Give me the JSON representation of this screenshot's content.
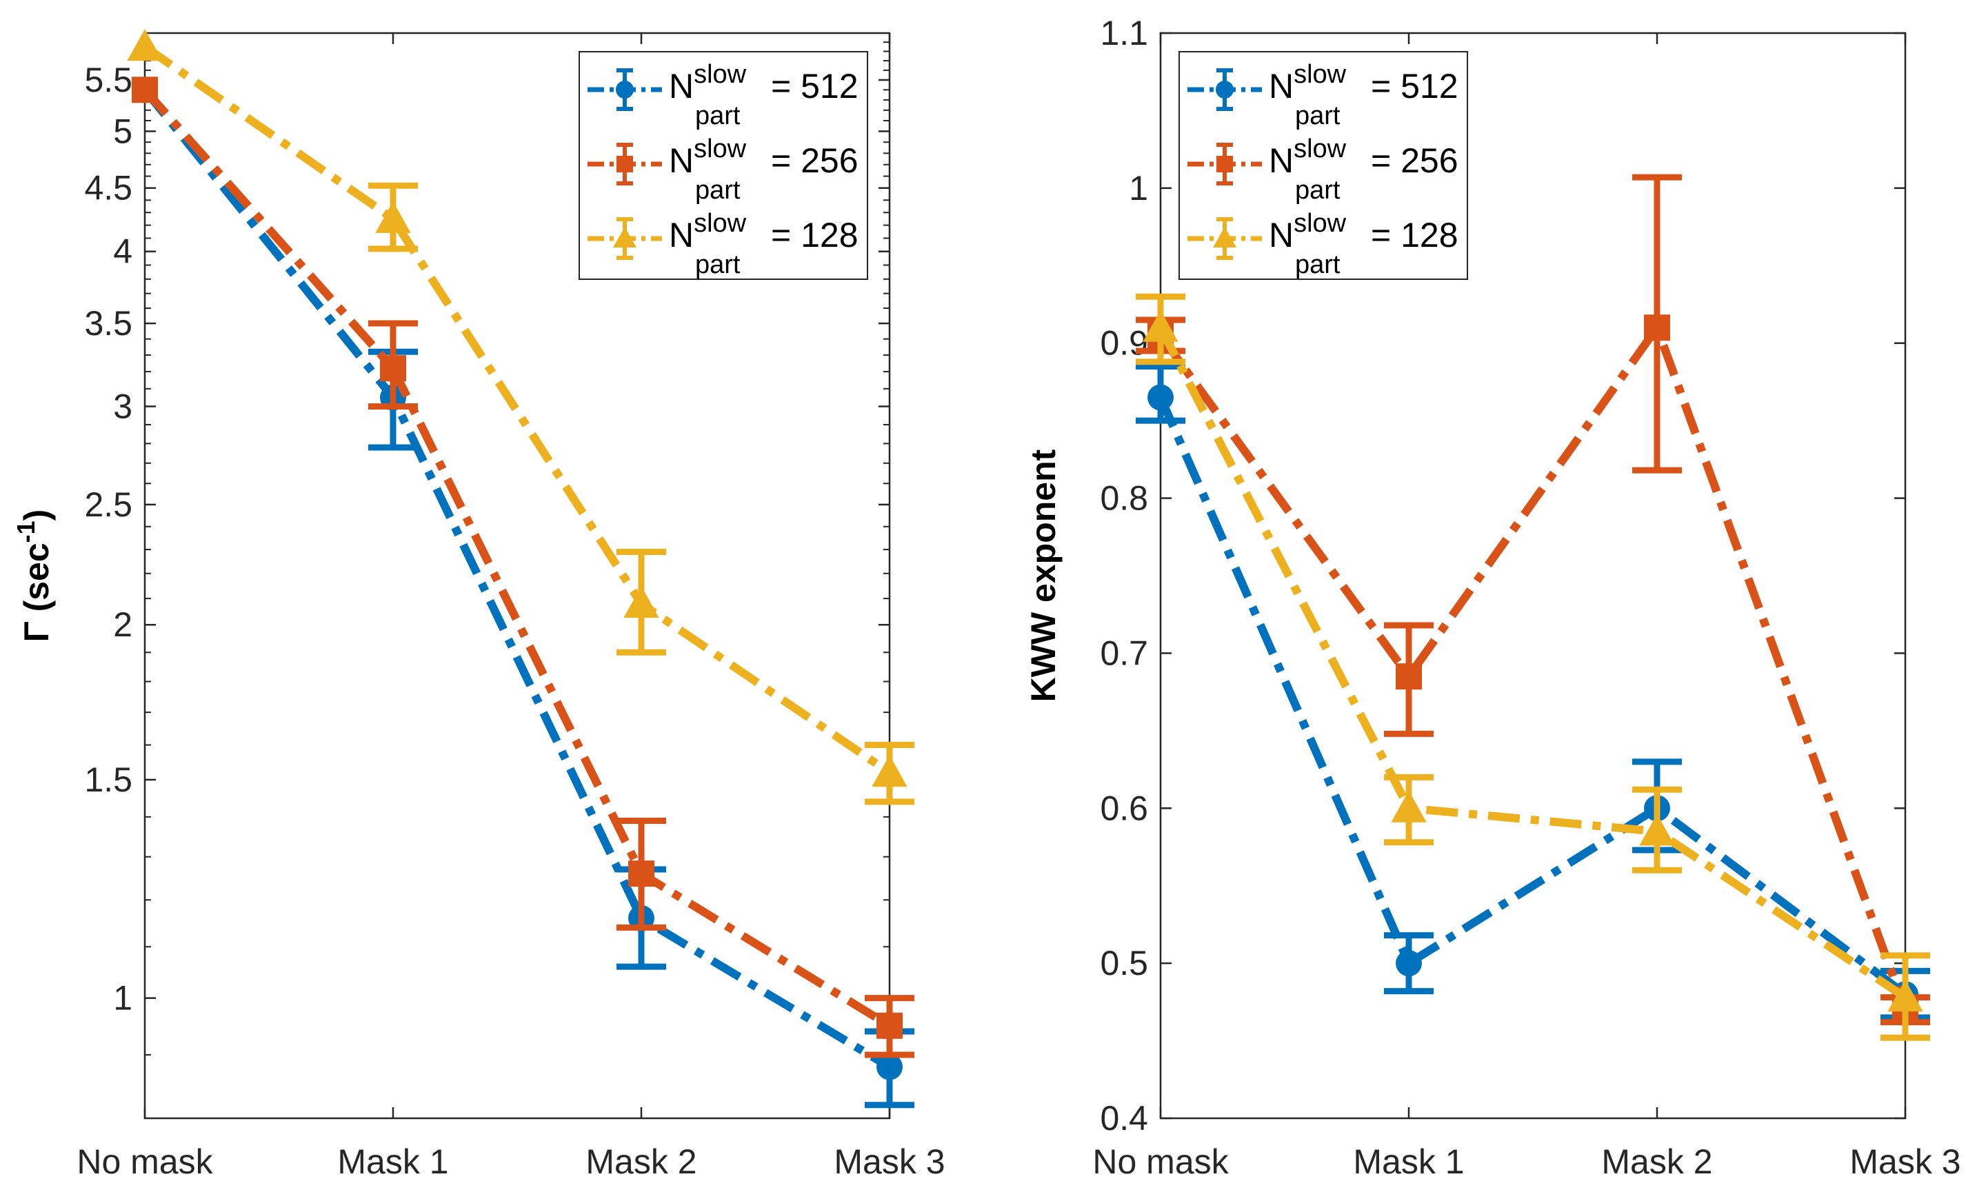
{
  "colors": {
    "blue": "#0072BD",
    "orange": "#D95319",
    "yellow": "#EDB120"
  },
  "chart_data": [
    {
      "type": "line",
      "scale": "log",
      "ylabel": "Γ (sec⁻¹)",
      "ylabel_parts": {
        "main": "Γ (sec",
        "sup": "-1",
        "close": ")"
      },
      "categories": [
        "No mask",
        "Mask 1",
        "Mask 2",
        "Mask 3"
      ],
      "ylim": [
        0.8,
        6.0
      ],
      "yticks": [
        1,
        1.5,
        2,
        2.5,
        3,
        3.5,
        4,
        4.5,
        5,
        5.5
      ],
      "ytick_labels": [
        "1",
        "1.5",
        "2",
        "2.5",
        "3",
        "3.5",
        "4",
        "4.5",
        "5",
        "5.5"
      ],
      "legend": {
        "position": "top-right"
      },
      "series": [
        {
          "name": "N_part^slow = 512",
          "label_base": "N",
          "label_sup": "slow",
          "label_sub": "part",
          "label_value": "= 512",
          "color": "#0072BD",
          "marker": "circle",
          "values": [
            5.4,
            3.05,
            1.16,
            0.88
          ],
          "err_low": [
            5.4,
            2.78,
            1.06,
            0.82
          ],
          "err_high": [
            5.4,
            3.32,
            1.27,
            0.94
          ]
        },
        {
          "name": "N_part^slow = 256",
          "label_base": "N",
          "label_sup": "slow",
          "label_sub": "part",
          "label_value": "= 256",
          "color": "#D95319",
          "marker": "square",
          "values": [
            5.4,
            3.22,
            1.26,
            0.95
          ],
          "err_low": [
            5.4,
            3.0,
            1.14,
            0.9
          ],
          "err_high": [
            5.4,
            3.5,
            1.39,
            1.0
          ]
        },
        {
          "name": "N_part^slow = 128",
          "label_base": "N",
          "label_sup": "slow",
          "label_sub": "part",
          "label_value": "= 128",
          "color": "#EDB120",
          "marker": "triangle",
          "values": [
            5.85,
            4.25,
            2.08,
            1.52
          ],
          "err_low": [
            5.85,
            4.02,
            1.9,
            1.44
          ],
          "err_high": [
            5.85,
            4.52,
            2.29,
            1.6
          ]
        }
      ]
    },
    {
      "type": "line",
      "scale": "linear",
      "ylabel": "KWW exponent",
      "categories": [
        "No mask",
        "Mask 1",
        "Mask 2",
        "Mask 3"
      ],
      "ylim": [
        0.4,
        1.1
      ],
      "yticks": [
        0.4,
        0.5,
        0.6,
        0.7,
        0.8,
        0.9,
        1.0,
        1.1
      ],
      "ytick_labels": [
        "0.4",
        "0.5",
        "0.6",
        "0.7",
        "0.8",
        "0.9",
        "1",
        "1.1"
      ],
      "legend": {
        "position": "top-left"
      },
      "series": [
        {
          "name": "N_part^slow = 512",
          "label_base": "N",
          "label_sup": "slow",
          "label_sub": "part",
          "label_value": "= 512",
          "color": "#0072BD",
          "marker": "circle",
          "values": [
            0.865,
            0.5,
            0.6,
            0.48
          ],
          "err_low": [
            0.85,
            0.482,
            0.573,
            0.465
          ],
          "err_high": [
            0.885,
            0.518,
            0.63,
            0.495
          ]
        },
        {
          "name": "N_part^slow = 256",
          "label_base": "N",
          "label_sup": "slow",
          "label_sub": "part",
          "label_value": "= 256",
          "color": "#D95319",
          "marker": "square",
          "values": [
            0.905,
            0.685,
            0.91,
            0.47
          ],
          "err_low": [
            0.895,
            0.648,
            0.818,
            0.462
          ],
          "err_high": [
            0.915,
            0.718,
            1.007,
            0.478
          ]
        },
        {
          "name": "N_part^slow = 128",
          "label_base": "N",
          "label_sup": "slow",
          "label_sub": "part",
          "label_value": "= 128",
          "color": "#EDB120",
          "marker": "triangle",
          "values": [
            0.91,
            0.6,
            0.585,
            0.478
          ],
          "err_low": [
            0.888,
            0.578,
            0.56,
            0.452
          ],
          "err_high": [
            0.93,
            0.62,
            0.612,
            0.505
          ]
        }
      ]
    }
  ]
}
